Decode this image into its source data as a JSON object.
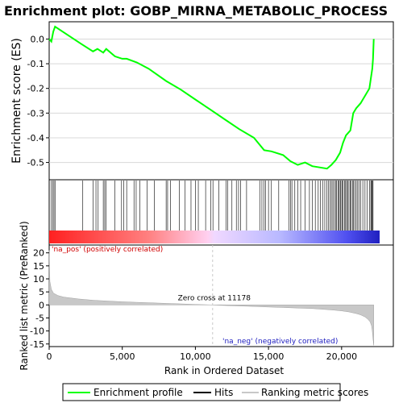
{
  "title": "Enrichment plot: GOBP_MIRNA_METABOLIC_PROCESS",
  "colors": {
    "es_line": "#00ff00",
    "hit": "#000000",
    "metric_fill": "#c8c8c8",
    "pos_text": "#d00000",
    "neg_text": "#2020c0",
    "zero_line": "#c8c8c8"
  },
  "chart_data": [
    {
      "type": "line",
      "name": "enrichment-score",
      "ylabel": "Enrichment score (ES)",
      "xlim": [
        0,
        22600
      ],
      "ylim": [
        -0.57,
        0.07
      ],
      "yticks": [
        0.0,
        -0.1,
        -0.2,
        -0.3,
        -0.4,
        -0.5
      ],
      "ytick_labels": [
        "0.0",
        "-0.1",
        "-0.2",
        "-0.3",
        "-0.4",
        "-0.5"
      ],
      "grid": true,
      "x": [
        0,
        150,
        280,
        400,
        2200,
        3000,
        3300,
        3700,
        3900,
        4500,
        5000,
        5300,
        6000,
        6800,
        8000,
        9000,
        10000,
        11000,
        12000,
        13000,
        14000,
        14700,
        15200,
        16000,
        16500,
        17000,
        17500,
        18000,
        18500,
        19000,
        19300,
        19600,
        19900,
        20100,
        20300,
        20600,
        20800,
        21000,
        21300,
        21600,
        21900,
        22000,
        22100,
        22150,
        22200
      ],
      "y": [
        0.0,
        -0.01,
        0.03,
        0.05,
        -0.02,
        -0.05,
        -0.04,
        -0.055,
        -0.04,
        -0.07,
        -0.08,
        -0.08,
        -0.095,
        -0.12,
        -0.17,
        -0.205,
        -0.245,
        -0.285,
        -0.325,
        -0.365,
        -0.4,
        -0.45,
        -0.455,
        -0.47,
        -0.495,
        -0.51,
        -0.5,
        -0.515,
        -0.52,
        -0.525,
        -0.51,
        -0.49,
        -0.46,
        -0.42,
        -0.39,
        -0.37,
        -0.3,
        -0.28,
        -0.26,
        -0.23,
        -0.2,
        -0.16,
        -0.12,
        -0.08,
        0.0
      ]
    },
    {
      "type": "hits",
      "name": "hits",
      "xlim": [
        0,
        22600
      ],
      "positions": [
        150,
        250,
        330,
        400,
        2300,
        3000,
        3200,
        3350,
        3700,
        3800,
        3900,
        4500,
        4950,
        5100,
        5300,
        5800,
        5950,
        6200,
        6700,
        7200,
        8000,
        8100,
        8300,
        8900,
        9300,
        9700,
        10000,
        10200,
        10700,
        11050,
        11200,
        11600,
        12100,
        12200,
        12500,
        12800,
        12950,
        13100,
        13500,
        14400,
        14550,
        14700,
        14800,
        15000,
        15200,
        15700,
        16400,
        16500,
        16600,
        16800,
        17000,
        17200,
        17500,
        17800,
        18000,
        18200,
        18400,
        18550,
        18700,
        18850,
        19000,
        19100,
        19200,
        19300,
        19400,
        19500,
        19600,
        19650,
        19750,
        19800,
        19900,
        19950,
        20050,
        20100,
        20200,
        20250,
        20350,
        20400,
        20500,
        20600,
        20650,
        20750,
        20800,
        20900,
        21000,
        21100,
        21200,
        21300,
        21450,
        21600,
        21750,
        21900,
        22000,
        22050,
        22100,
        22150
      ]
    },
    {
      "type": "area",
      "name": "ranked-list-metric",
      "ylabel": "Ranked list metric (PreRanked)",
      "xlabel": "Rank in Ordered Dataset",
      "xlim": [
        0,
        22600
      ],
      "ylim": [
        -16,
        23
      ],
      "xticks": [
        0,
        5000,
        10000,
        15000,
        20000
      ],
      "xtick_labels": [
        "0",
        "5,000",
        "10,000",
        "15,000",
        "20,000"
      ],
      "yticks": [
        20,
        15,
        10,
        5,
        0,
        -5,
        -10,
        -15
      ],
      "ytick_labels": [
        "20",
        "15",
        "10",
        "5",
        "0",
        "-5",
        "-10",
        "-15"
      ],
      "x": [
        0,
        50,
        150,
        300,
        600,
        1000,
        2000,
        3000,
        4000,
        5000,
        6000,
        7000,
        8000,
        9000,
        10000,
        11178,
        12000,
        13000,
        14000,
        15000,
        16000,
        17000,
        18000,
        19000,
        19500,
        20000,
        20500,
        21000,
        21300,
        21600,
        21800,
        21950,
        22050,
        22100,
        22150,
        22200
      ],
      "y": [
        21,
        9,
        6,
        4.5,
        3.6,
        3.0,
        2.3,
        1.8,
        1.5,
        1.2,
        1.0,
        0.8,
        0.6,
        0.4,
        0.2,
        0.0,
        -0.2,
        -0.4,
        -0.6,
        -0.8,
        -1.0,
        -1.2,
        -1.4,
        -1.8,
        -2.0,
        -2.3,
        -2.7,
        -3.3,
        -3.8,
        -4.6,
        -5.5,
        -6.5,
        -8,
        -10,
        -13,
        -15.5
      ],
      "zero_cross": 11178
    }
  ],
  "annotations": {
    "zero_cross": "Zero cross at 11178",
    "pos": "'na_pos' (positively correlated)",
    "neg": "'na_neg' (negatively correlated)"
  },
  "legend": {
    "items": [
      {
        "label": "Enrichment profile",
        "color": "#00ff00"
      },
      {
        "label": "Hits",
        "color": "#000000"
      },
      {
        "label": "Ranking metric scores",
        "color": "#c8c8c8"
      }
    ]
  }
}
